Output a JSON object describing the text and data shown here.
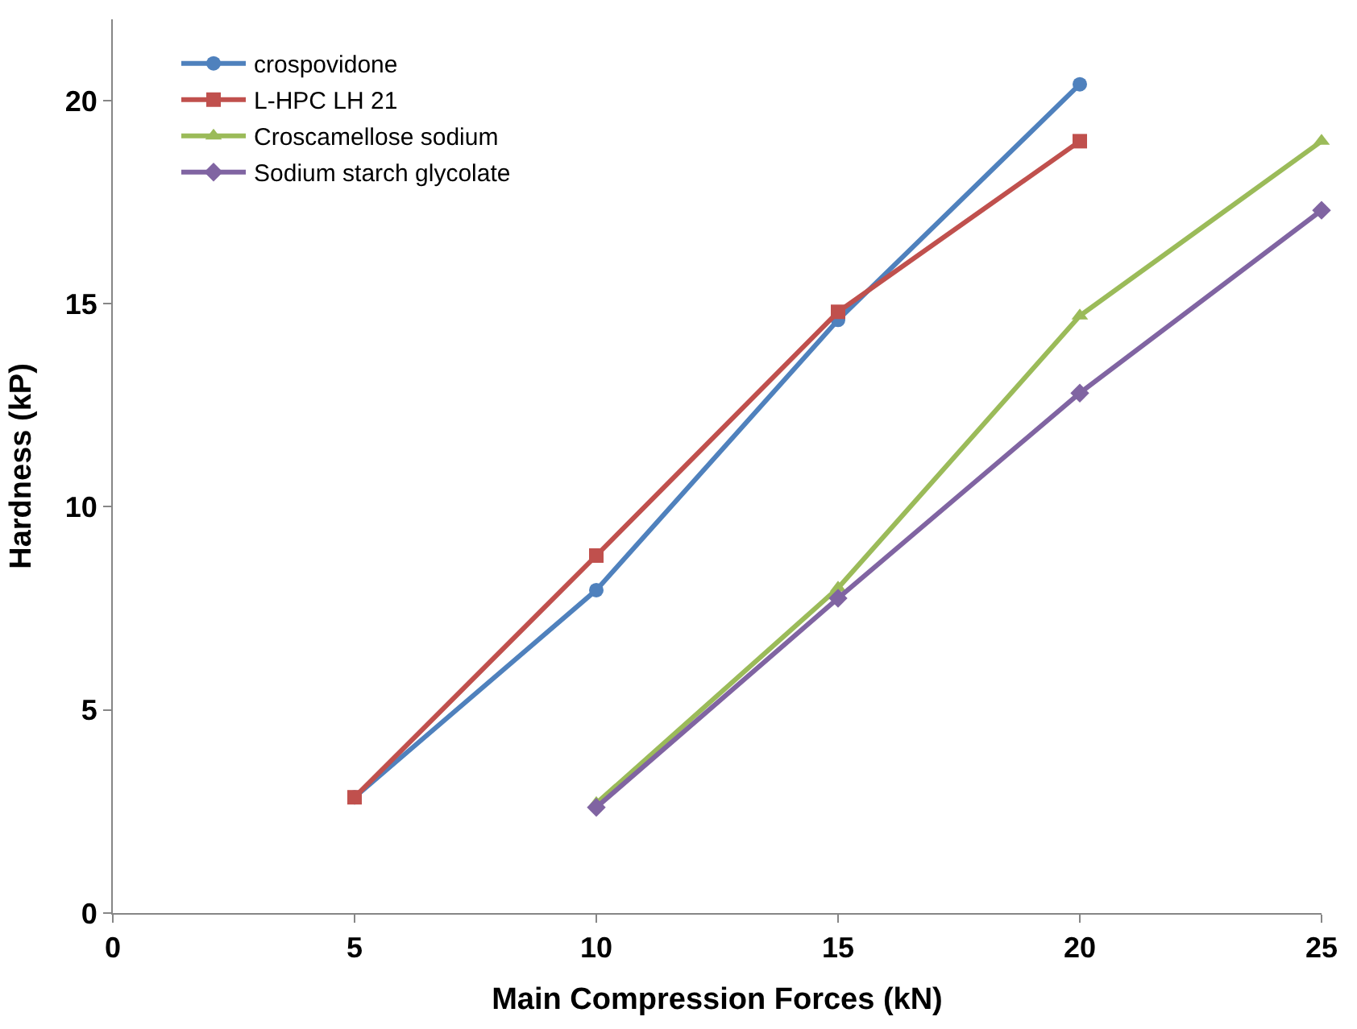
{
  "chart_data": {
    "type": "line",
    "xlabel": "Main Compression Forces (kN)",
    "ylabel": "Hardness (kP)",
    "xlim": [
      0,
      25
    ],
    "xticks": [
      0,
      5,
      10,
      15,
      20,
      25
    ],
    "ylim": [
      0,
      22
    ],
    "yticks": [
      0,
      5,
      10,
      15,
      20
    ],
    "grid": false,
    "legend": "top left",
    "line_style": "solid",
    "series": [
      {
        "name": "crospovidone",
        "color": "#4f81bd",
        "marker": "circle",
        "x": [
          5,
          10,
          15,
          20
        ],
        "values": [
          2.85,
          7.95,
          14.6,
          20.4
        ]
      },
      {
        "name": "L-HPC LH 21",
        "color": "#c0504d",
        "marker": "square",
        "x": [
          5,
          10,
          15,
          20
        ],
        "values": [
          2.85,
          8.8,
          14.8,
          19.0
        ]
      },
      {
        "name": "Croscamellose sodium",
        "color": "#9bbb59",
        "marker": "triangle",
        "x": [
          10,
          15,
          20,
          25
        ],
        "values": [
          2.7,
          8.0,
          14.7,
          19.0
        ]
      },
      {
        "name": "Sodium starch glycolate",
        "color": "#8064a2",
        "marker": "diamond",
        "x": [
          10,
          15,
          20,
          25
        ],
        "values": [
          2.6,
          7.75,
          12.8,
          17.3
        ]
      }
    ]
  }
}
